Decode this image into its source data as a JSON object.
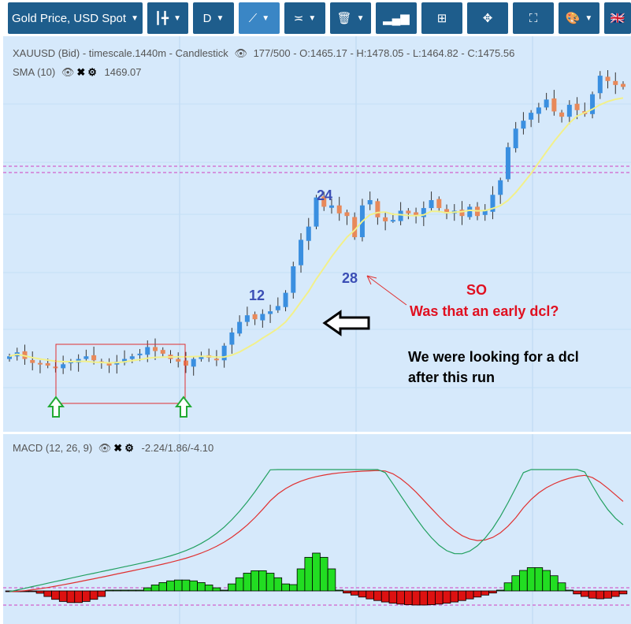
{
  "toolbar": {
    "symbol_label": "Gold Price, USD Spot",
    "period_label": "D",
    "flag_label": "🇬🇧"
  },
  "chart_info": {
    "main_line": "XAUUSD (Bid) - timescale.1440m - Candlestick",
    "counts": "177/500",
    "ohlc": "- O:1465.17 - H:1478.05 - L:1464.82 - C:1475.56",
    "sma_label": "SMA (10)",
    "sma_value": "1469.07",
    "macd_label": "MACD (12, 26, 9)",
    "macd_value": "-2.24/1.86/-4.10"
  },
  "annotations": {
    "label_12": "12",
    "label_24": "24",
    "label_28": "28",
    "so": "SO",
    "question": "Was that an early dcl?",
    "note_line1": "We were looking for a dcl",
    "note_line2": "after this run"
  },
  "colors": {
    "background": "#d6e9fb",
    "toolbar_button": "#1e5d8c",
    "bull_candle": "#3a8fe0",
    "bear_candle": "#e8895a",
    "sma_line": "#f2f08a",
    "macd_line": "#22a060",
    "signal_line": "#e03030",
    "hist_positive": "#22dd22",
    "hist_negative": "#dd1111"
  },
  "chart_data": [
    {
      "type": "candlestick",
      "title": "XAUUSD (Bid) - timescale.1440m - Candlestick",
      "series": [
        {
          "name": "SMA (10)",
          "last_value": 1469.07
        }
      ],
      "last_candle": {
        "open": 1465.17,
        "high": 1478.05,
        "low": 1464.82,
        "close": 1475.56
      },
      "visible_closes": [
        1272,
        1275,
        1270,
        1267,
        1266,
        1265,
        1263,
        1266,
        1268,
        1270,
        1272,
        1269,
        1267,
        1265,
        1268,
        1270,
        1272,
        1274,
        1279,
        1276,
        1274,
        1270,
        1268,
        1265,
        1270,
        1272,
        1271,
        1269,
        1280,
        1290,
        1298,
        1303,
        1300,
        1304,
        1306,
        1310,
        1320,
        1340,
        1360,
        1370,
        1392,
        1385,
        1386,
        1380,
        1378,
        1362,
        1386,
        1390,
        1377,
        1374,
        1375,
        1382,
        1380,
        1378,
        1384,
        1390,
        1384,
        1380,
        1382,
        1378,
        1385,
        1378,
        1382,
        1394,
        1405,
        1430,
        1444,
        1450,
        1456,
        1460,
        1466,
        1457,
        1453,
        1462,
        1458,
        1455,
        1470,
        1484,
        1480,
        1477,
        1475.56
      ]
    },
    {
      "type": "line",
      "title": "MACD (12, 26, 9)",
      "series": [
        {
          "name": "MACD",
          "last_value": -2.24
        },
        {
          "name": "Signal",
          "last_value": 1.86
        },
        {
          "name": "Histogram",
          "last_value": -4.1
        }
      ]
    }
  ]
}
